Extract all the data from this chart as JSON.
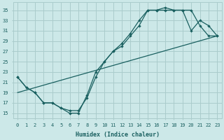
{
  "xlabel": "Humidex (Indice chaleur)",
  "bg_color": "#cce8e8",
  "grid_color": "#aacccc",
  "line_color": "#1a6060",
  "xlim": [
    -0.5,
    23.5
  ],
  "ylim": [
    14,
    36.5
  ],
  "yticks": [
    15,
    17,
    19,
    21,
    23,
    25,
    27,
    29,
    31,
    33,
    35
  ],
  "xticks": [
    0,
    1,
    2,
    3,
    4,
    5,
    6,
    7,
    8,
    9,
    10,
    11,
    12,
    13,
    14,
    15,
    16,
    17,
    18,
    19,
    20,
    21,
    22,
    23
  ],
  "line1_x": [
    0,
    1,
    2,
    3,
    4,
    5,
    6,
    7,
    8,
    9,
    10,
    11,
    12,
    13,
    14,
    15,
    16,
    17,
    18,
    19,
    20,
    21,
    22,
    23
  ],
  "line1_y": [
    22,
    20,
    19,
    17,
    17,
    16,
    15,
    15,
    18.5,
    23,
    25,
    27,
    28,
    30,
    32,
    35,
    35,
    35,
    35,
    35,
    31,
    33,
    32,
    30
  ],
  "line2_x": [
    0,
    1,
    2,
    3,
    4,
    5,
    6,
    7,
    8,
    9,
    10,
    11,
    12,
    13,
    14,
    15,
    16,
    17,
    18,
    19,
    20,
    21,
    22,
    23
  ],
  "line2_y": [
    22,
    20,
    19,
    17,
    17,
    16,
    15.5,
    15.5,
    18,
    22,
    25,
    27,
    28.5,
    30.5,
    33,
    35,
    35,
    35.5,
    35,
    35,
    35,
    32,
    30,
    30
  ],
  "line3_x": [
    0,
    23
  ],
  "line3_y": [
    19,
    30
  ]
}
